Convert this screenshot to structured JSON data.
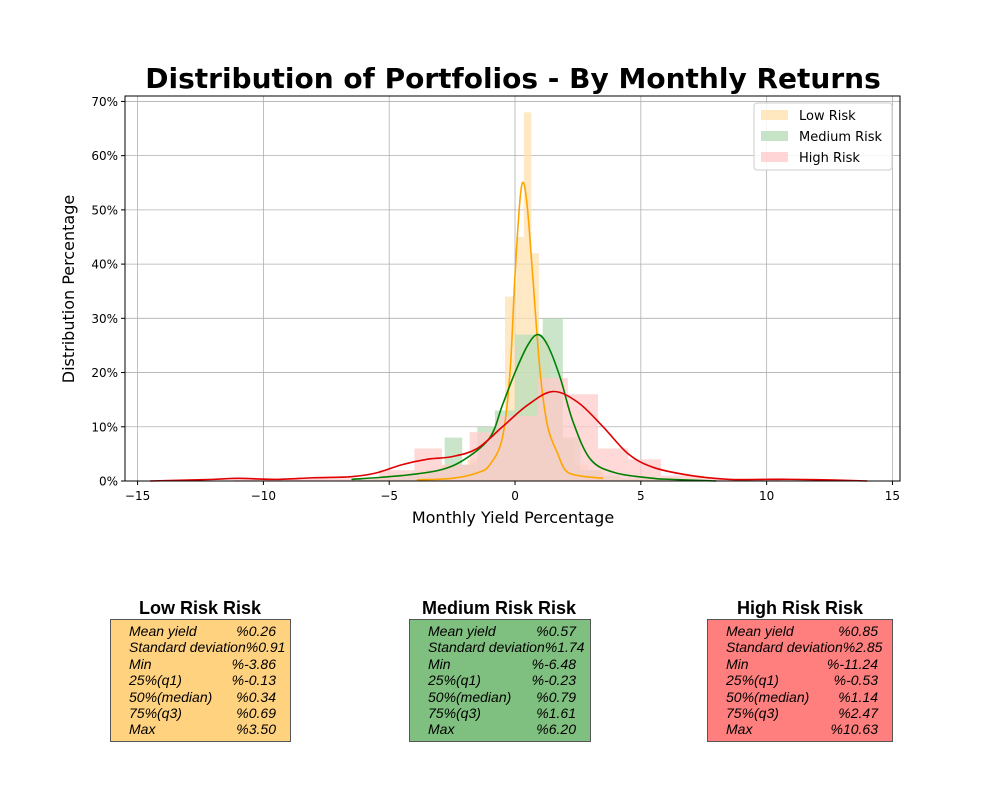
{
  "chart_data": {
    "type": "histogram",
    "title": "Distribution of Portfolios - By Monthly Returns",
    "xlabel": "Monthly Yield Percentage",
    "ylabel": "Distribution Percentage",
    "xlim": [
      -15.5,
      15.3
    ],
    "ylim": [
      0,
      71
    ],
    "xticks": [
      -15,
      -10,
      -5,
      0,
      5,
      10,
      15
    ],
    "xtick_labels": [
      "−15",
      "−10",
      "−5",
      "0",
      "5",
      "10",
      "15"
    ],
    "yticks": [
      0,
      10,
      20,
      30,
      40,
      50,
      60,
      70
    ],
    "ytick_labels": [
      "0%",
      "10%",
      "20%",
      "30%",
      "40%",
      "50%",
      "60%",
      "70%"
    ],
    "grid": true,
    "legend_position": "top-right",
    "series": [
      {
        "name": "Low Risk",
        "bar_color": "#ffe2b0",
        "line_color": "#ffa500",
        "bins": [
          [
            -3.9,
            -3.4,
            2
          ],
          [
            -3.4,
            -2.9,
            2
          ],
          [
            -2.9,
            -2.4,
            3
          ],
          [
            -2.4,
            -1.9,
            3
          ],
          [
            -1.9,
            -1.4,
            4
          ],
          [
            -1.4,
            -0.9,
            6
          ],
          [
            -0.9,
            -0.4,
            10
          ],
          [
            -0.4,
            0.05,
            34
          ],
          [
            0.05,
            0.35,
            45
          ],
          [
            0.35,
            0.65,
            68
          ],
          [
            0.65,
            0.95,
            42
          ],
          [
            0.95,
            1.4,
            26
          ],
          [
            1.4,
            1.9,
            16
          ],
          [
            1.9,
            2.4,
            8
          ],
          [
            2.4,
            2.9,
            3
          ],
          [
            2.9,
            3.5,
            2
          ]
        ],
        "kde": [
          [
            -3.9,
            0.2
          ],
          [
            -2.5,
            0.5
          ],
          [
            -1.5,
            1.5
          ],
          [
            -1.0,
            3
          ],
          [
            -0.5,
            8
          ],
          [
            -0.2,
            20
          ],
          [
            0.0,
            38
          ],
          [
            0.2,
            52
          ],
          [
            0.34,
            55
          ],
          [
            0.5,
            50
          ],
          [
            0.7,
            38
          ],
          [
            1.0,
            20
          ],
          [
            1.3,
            10
          ],
          [
            1.7,
            5
          ],
          [
            2.0,
            2
          ],
          [
            2.5,
            1
          ],
          [
            3.5,
            0.5
          ]
        ]
      },
      {
        "name": "Medium Risk",
        "bar_color": "#b9dcb9",
        "line_color": "#008000",
        "bins": [
          [
            -6.5,
            -5.5,
            0.5
          ],
          [
            -5.5,
            -4.5,
            0.5
          ],
          [
            -4.5,
            -3.5,
            1
          ],
          [
            -3.5,
            -2.8,
            2
          ],
          [
            -2.8,
            -2.1,
            8
          ],
          [
            -2.1,
            -1.5,
            3
          ],
          [
            -1.5,
            -0.8,
            10
          ],
          [
            -0.8,
            0,
            13
          ],
          [
            0,
            1.1,
            27
          ],
          [
            1.1,
            1.9,
            30
          ],
          [
            1.9,
            2.6,
            8
          ],
          [
            2.6,
            3.4,
            2
          ],
          [
            3.4,
            4.2,
            1
          ],
          [
            4.2,
            5.0,
            0.5
          ],
          [
            5.0,
            6.2,
            0.5
          ]
        ],
        "kde": [
          [
            -6.5,
            0.3
          ],
          [
            -4.5,
            1
          ],
          [
            -3.0,
            2
          ],
          [
            -2.0,
            4
          ],
          [
            -1.0,
            8
          ],
          [
            -0.5,
            14
          ],
          [
            0,
            20
          ],
          [
            0.5,
            25
          ],
          [
            0.9,
            27
          ],
          [
            1.3,
            25
          ],
          [
            1.8,
            19
          ],
          [
            2.3,
            11
          ],
          [
            3.0,
            4
          ],
          [
            4.0,
            1.5
          ],
          [
            5.5,
            0.5
          ],
          [
            6.2,
            0.3
          ],
          [
            8,
            0
          ]
        ]
      },
      {
        "name": "High Risk",
        "bar_color": "#ffcbcb",
        "line_color": "#e00000",
        "bins": [
          [
            -11.2,
            -9.0,
            0.3
          ],
          [
            -9.0,
            -7.2,
            0.5
          ],
          [
            -7.2,
            -5.4,
            0.5
          ],
          [
            -5.4,
            -4.0,
            2
          ],
          [
            -4.0,
            -2.9,
            6
          ],
          [
            -2.9,
            -1.8,
            3
          ],
          [
            -1.8,
            -0.7,
            9
          ],
          [
            -0.7,
            0.9,
            12
          ],
          [
            0.9,
            2.1,
            19
          ],
          [
            2.1,
            3.3,
            16
          ],
          [
            3.3,
            4.5,
            6
          ],
          [
            4.5,
            5.8,
            4
          ],
          [
            5.8,
            7.5,
            1
          ],
          [
            7.5,
            10.6,
            0.5
          ]
        ],
        "kde": [
          [
            -14.5,
            0
          ],
          [
            -12,
            0.3
          ],
          [
            -11,
            0.5
          ],
          [
            -9.5,
            0.3
          ],
          [
            -8,
            0.6
          ],
          [
            -6.5,
            0.8
          ],
          [
            -5.5,
            1.5
          ],
          [
            -4.5,
            3
          ],
          [
            -3.5,
            4
          ],
          [
            -2.5,
            4.5
          ],
          [
            -1.5,
            6
          ],
          [
            -0.5,
            10
          ],
          [
            0.5,
            14
          ],
          [
            1.5,
            16.5
          ],
          [
            2.5,
            14.5
          ],
          [
            3.5,
            10
          ],
          [
            4.5,
            5
          ],
          [
            5.5,
            2.5
          ],
          [
            7,
            1
          ],
          [
            8.5,
            0.3
          ],
          [
            10,
            0.3
          ],
          [
            11,
            0.3
          ],
          [
            12.5,
            0.2
          ],
          [
            14,
            0
          ]
        ]
      }
    ]
  },
  "stats": [
    {
      "title": "Low Risk Risk",
      "bg": "#ffd27f",
      "rows": [
        {
          "label": "Mean yield",
          "value": "%0.26"
        },
        {
          "label": "Standard deviation",
          "value": "%0.91"
        },
        {
          "label": "Min",
          "value": "%-3.86"
        },
        {
          "label": "25%(q1)",
          "value": "%-0.13"
        },
        {
          "label": "50%(median)",
          "value": "%0.34"
        },
        {
          "label": "75%(q3)",
          "value": "%0.69"
        },
        {
          "label": "Max",
          "value": "%3.50"
        }
      ]
    },
    {
      "title": "Medium Risk Risk",
      "bg": "#7fbf7f",
      "rows": [
        {
          "label": "Mean yield",
          "value": "%0.57"
        },
        {
          "label": "Standard deviation",
          "value": "%1.74"
        },
        {
          "label": "Min",
          "value": "%-6.48"
        },
        {
          "label": "25%(q1)",
          "value": "%-0.23"
        },
        {
          "label": "50%(median)",
          "value": "%0.79"
        },
        {
          "label": "75%(q3)",
          "value": "%1.61"
        },
        {
          "label": "Max",
          "value": "%6.20"
        }
      ]
    },
    {
      "title": "High Risk Risk",
      "bg": "#ff7f7f",
      "rows": [
        {
          "label": "Mean yield",
          "value": "%0.85"
        },
        {
          "label": "Standard deviation",
          "value": "%2.85"
        },
        {
          "label": "Min",
          "value": "%-11.24"
        },
        {
          "label": "25%(q1)",
          "value": "%-0.53"
        },
        {
          "label": "50%(median)",
          "value": "%1.14"
        },
        {
          "label": "75%(q3)",
          "value": "%2.47"
        },
        {
          "label": "Max",
          "value": "%10.63"
        }
      ]
    }
  ]
}
